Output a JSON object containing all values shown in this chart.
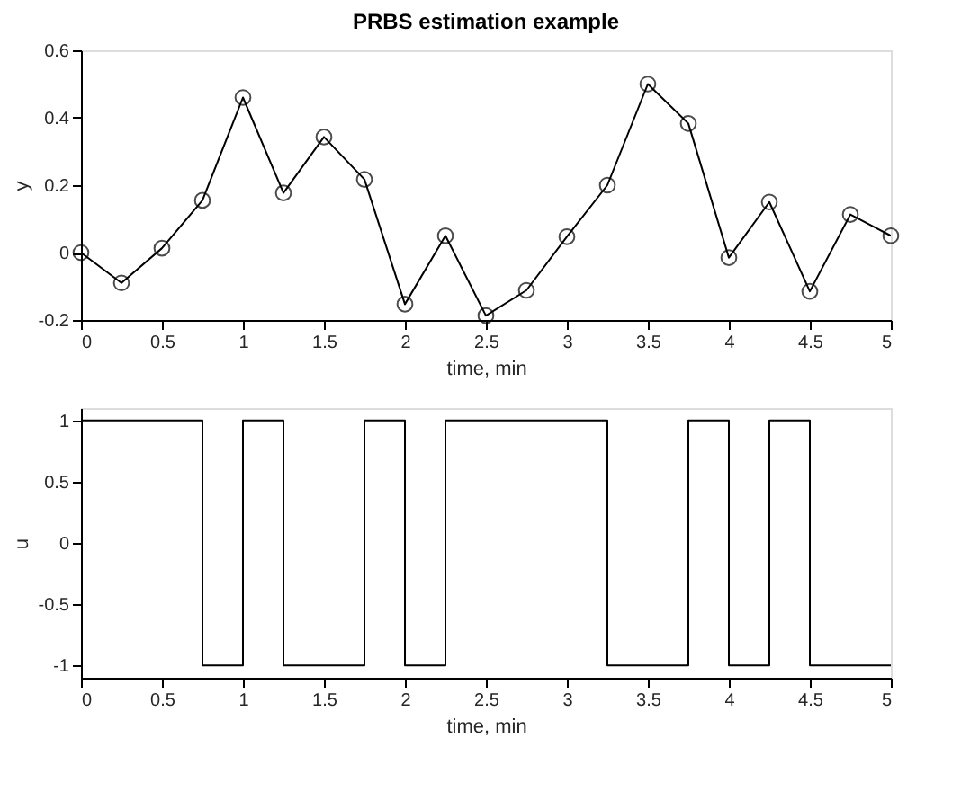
{
  "chart_data": [
    {
      "type": "line",
      "title": "PRBS estimation example",
      "xlabel": "time, min",
      "ylabel": "y",
      "x": [
        0,
        0.25,
        0.5,
        0.75,
        1,
        1.25,
        1.5,
        1.75,
        2,
        2.25,
        2.5,
        2.75,
        3,
        3.25,
        3.5,
        3.75,
        4,
        4.25,
        4.5,
        4.75,
        5
      ],
      "series": [
        {
          "color": "#000000",
          "values": [
            0,
            -0.09,
            0.013,
            0.155,
            0.46,
            0.177,
            0.343,
            0.217,
            -0.153,
            0.05,
            -0.187,
            -0.112,
            0.047,
            0.2,
            0.5,
            0.383,
            -0.015,
            0.15,
            -0.115,
            0.113,
            0.05
          ]
        }
      ],
      "marker": "circle",
      "xlim": [
        0,
        5
      ],
      "xticks": [
        0,
        0.5,
        1,
        1.5,
        2,
        2.5,
        3,
        3.5,
        4,
        4.5,
        5
      ],
      "ylim": [
        -0.2,
        0.6
      ],
      "yticks": [
        -0.2,
        0,
        0.2,
        0.4,
        0.6
      ],
      "grid": false
    },
    {
      "type": "step",
      "xlabel": "time, min",
      "ylabel": "u",
      "x": [
        0,
        0.25,
        0.5,
        0.75,
        1,
        1.25,
        1.5,
        1.75,
        2,
        2.25,
        2.5,
        2.75,
        3,
        3.25,
        3.5,
        3.75,
        4,
        4.25,
        4.5,
        4.75,
        5
      ],
      "series": [
        {
          "color": "#000000",
          "values": [
            1,
            1,
            1,
            -1,
            1,
            -1,
            -1,
            1,
            -1,
            1,
            1,
            1,
            1,
            -1,
            -1,
            1,
            -1,
            1,
            -1,
            -1,
            -1
          ]
        }
      ],
      "xlim": [
        0,
        5
      ],
      "xticks": [
        0,
        0.5,
        1,
        1.5,
        2,
        2.5,
        3,
        3.5,
        4,
        4.5,
        5
      ],
      "ylim": [
        -1.1,
        1.1
      ],
      "yticks": [
        -1,
        -0.5,
        0,
        0.5,
        1
      ],
      "grid": false
    }
  ]
}
